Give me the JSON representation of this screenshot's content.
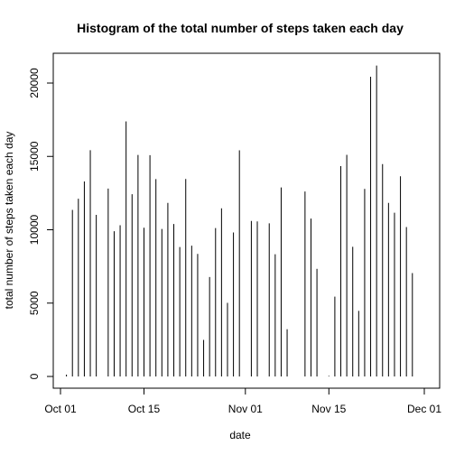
{
  "chart_data": {
    "type": "bar",
    "title": "Histogram of the total number of steps taken each day",
    "xlabel": "date",
    "ylabel": "total number of steps taken each day",
    "x_ticks": [
      "Oct 01",
      "Oct 15",
      "Nov 01",
      "Nov 15",
      "Dec 01"
    ],
    "x_tick_dates": [
      "2012-10-01",
      "2012-10-15",
      "2012-11-01",
      "2012-11-15",
      "2012-12-01"
    ],
    "y_ticks": [
      0,
      5000,
      10000,
      15000,
      20000
    ],
    "xlim": [
      "2012-10-01",
      "2012-12-01"
    ],
    "ylim": [
      0,
      22000
    ],
    "grid": false,
    "x": [
      "2012-10-02",
      "2012-10-03",
      "2012-10-04",
      "2012-10-05",
      "2012-10-06",
      "2012-10-07",
      "2012-10-09",
      "2012-10-10",
      "2012-10-11",
      "2012-10-12",
      "2012-10-13",
      "2012-10-14",
      "2012-10-15",
      "2012-10-16",
      "2012-10-17",
      "2012-10-18",
      "2012-10-19",
      "2012-10-20",
      "2012-10-21",
      "2012-10-22",
      "2012-10-23",
      "2012-10-24",
      "2012-10-25",
      "2012-10-26",
      "2012-10-27",
      "2012-10-28",
      "2012-10-29",
      "2012-10-30",
      "2012-10-31",
      "2012-11-02",
      "2012-11-03",
      "2012-11-05",
      "2012-11-06",
      "2012-11-07",
      "2012-11-08",
      "2012-11-11",
      "2012-11-12",
      "2012-11-13",
      "2012-11-15",
      "2012-11-16",
      "2012-11-17",
      "2012-11-18",
      "2012-11-19",
      "2012-11-20",
      "2012-11-21",
      "2012-11-22",
      "2012-11-23",
      "2012-11-24",
      "2012-11-25",
      "2012-11-26",
      "2012-11-27",
      "2012-11-28",
      "2012-11-29"
    ],
    "values": [
      126,
      11352,
      12116,
      13294,
      15420,
      11015,
      12811,
      9900,
      10304,
      17382,
      12426,
      15098,
      10139,
      15084,
      13452,
      10056,
      11829,
      10395,
      8821,
      13460,
      8918,
      8355,
      2492,
      6778,
      10119,
      11458,
      5018,
      9819,
      15414,
      10600,
      10571,
      10439,
      8334,
      12883,
      3219,
      12608,
      10765,
      7336,
      41,
      5441,
      14339,
      15110,
      8841,
      4472,
      12787,
      20427,
      21194,
      14478,
      11834,
      11162,
      13646,
      10183,
      7047
    ]
  }
}
